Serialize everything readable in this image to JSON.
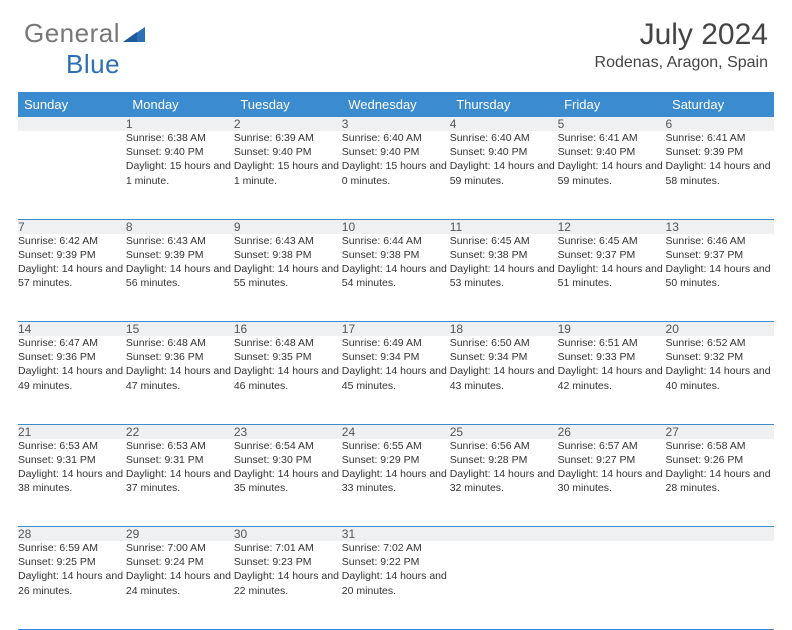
{
  "logo": {
    "text_grey": "General",
    "text_blue": "Blue"
  },
  "title": "July 2024",
  "location": "Rodenas, Aragon, Spain",
  "colors": {
    "header_bg": "#3b8bd0",
    "header_text": "#ffffff",
    "daynum_bg": "#eef0f2",
    "border": "#3b8bd0",
    "body_text": "#333333",
    "logo_blue": "#2d6fb5"
  },
  "weekdays": [
    "Sunday",
    "Monday",
    "Tuesday",
    "Wednesday",
    "Thursday",
    "Friday",
    "Saturday"
  ],
  "weeks": [
    [
      null,
      {
        "n": "1",
        "sr": "6:38 AM",
        "ss": "9:40 PM",
        "dl": "15 hours and 1 minute."
      },
      {
        "n": "2",
        "sr": "6:39 AM",
        "ss": "9:40 PM",
        "dl": "15 hours and 1 minute."
      },
      {
        "n": "3",
        "sr": "6:40 AM",
        "ss": "9:40 PM",
        "dl": "15 hours and 0 minutes."
      },
      {
        "n": "4",
        "sr": "6:40 AM",
        "ss": "9:40 PM",
        "dl": "14 hours and 59 minutes."
      },
      {
        "n": "5",
        "sr": "6:41 AM",
        "ss": "9:40 PM",
        "dl": "14 hours and 59 minutes."
      },
      {
        "n": "6",
        "sr": "6:41 AM",
        "ss": "9:39 PM",
        "dl": "14 hours and 58 minutes."
      }
    ],
    [
      {
        "n": "7",
        "sr": "6:42 AM",
        "ss": "9:39 PM",
        "dl": "14 hours and 57 minutes."
      },
      {
        "n": "8",
        "sr": "6:43 AM",
        "ss": "9:39 PM",
        "dl": "14 hours and 56 minutes."
      },
      {
        "n": "9",
        "sr": "6:43 AM",
        "ss": "9:38 PM",
        "dl": "14 hours and 55 minutes."
      },
      {
        "n": "10",
        "sr": "6:44 AM",
        "ss": "9:38 PM",
        "dl": "14 hours and 54 minutes."
      },
      {
        "n": "11",
        "sr": "6:45 AM",
        "ss": "9:38 PM",
        "dl": "14 hours and 53 minutes."
      },
      {
        "n": "12",
        "sr": "6:45 AM",
        "ss": "9:37 PM",
        "dl": "14 hours and 51 minutes."
      },
      {
        "n": "13",
        "sr": "6:46 AM",
        "ss": "9:37 PM",
        "dl": "14 hours and 50 minutes."
      }
    ],
    [
      {
        "n": "14",
        "sr": "6:47 AM",
        "ss": "9:36 PM",
        "dl": "14 hours and 49 minutes."
      },
      {
        "n": "15",
        "sr": "6:48 AM",
        "ss": "9:36 PM",
        "dl": "14 hours and 47 minutes."
      },
      {
        "n": "16",
        "sr": "6:48 AM",
        "ss": "9:35 PM",
        "dl": "14 hours and 46 minutes."
      },
      {
        "n": "17",
        "sr": "6:49 AM",
        "ss": "9:34 PM",
        "dl": "14 hours and 45 minutes."
      },
      {
        "n": "18",
        "sr": "6:50 AM",
        "ss": "9:34 PM",
        "dl": "14 hours and 43 minutes."
      },
      {
        "n": "19",
        "sr": "6:51 AM",
        "ss": "9:33 PM",
        "dl": "14 hours and 42 minutes."
      },
      {
        "n": "20",
        "sr": "6:52 AM",
        "ss": "9:32 PM",
        "dl": "14 hours and 40 minutes."
      }
    ],
    [
      {
        "n": "21",
        "sr": "6:53 AM",
        "ss": "9:31 PM",
        "dl": "14 hours and 38 minutes."
      },
      {
        "n": "22",
        "sr": "6:53 AM",
        "ss": "9:31 PM",
        "dl": "14 hours and 37 minutes."
      },
      {
        "n": "23",
        "sr": "6:54 AM",
        "ss": "9:30 PM",
        "dl": "14 hours and 35 minutes."
      },
      {
        "n": "24",
        "sr": "6:55 AM",
        "ss": "9:29 PM",
        "dl": "14 hours and 33 minutes."
      },
      {
        "n": "25",
        "sr": "6:56 AM",
        "ss": "9:28 PM",
        "dl": "14 hours and 32 minutes."
      },
      {
        "n": "26",
        "sr": "6:57 AM",
        "ss": "9:27 PM",
        "dl": "14 hours and 30 minutes."
      },
      {
        "n": "27",
        "sr": "6:58 AM",
        "ss": "9:26 PM",
        "dl": "14 hours and 28 minutes."
      }
    ],
    [
      {
        "n": "28",
        "sr": "6:59 AM",
        "ss": "9:25 PM",
        "dl": "14 hours and 26 minutes."
      },
      {
        "n": "29",
        "sr": "7:00 AM",
        "ss": "9:24 PM",
        "dl": "14 hours and 24 minutes."
      },
      {
        "n": "30",
        "sr": "7:01 AM",
        "ss": "9:23 PM",
        "dl": "14 hours and 22 minutes."
      },
      {
        "n": "31",
        "sr": "7:02 AM",
        "ss": "9:22 PM",
        "dl": "14 hours and 20 minutes."
      },
      null,
      null,
      null
    ]
  ],
  "labels": {
    "sunrise": "Sunrise:",
    "sunset": "Sunset:",
    "daylight": "Daylight:"
  }
}
